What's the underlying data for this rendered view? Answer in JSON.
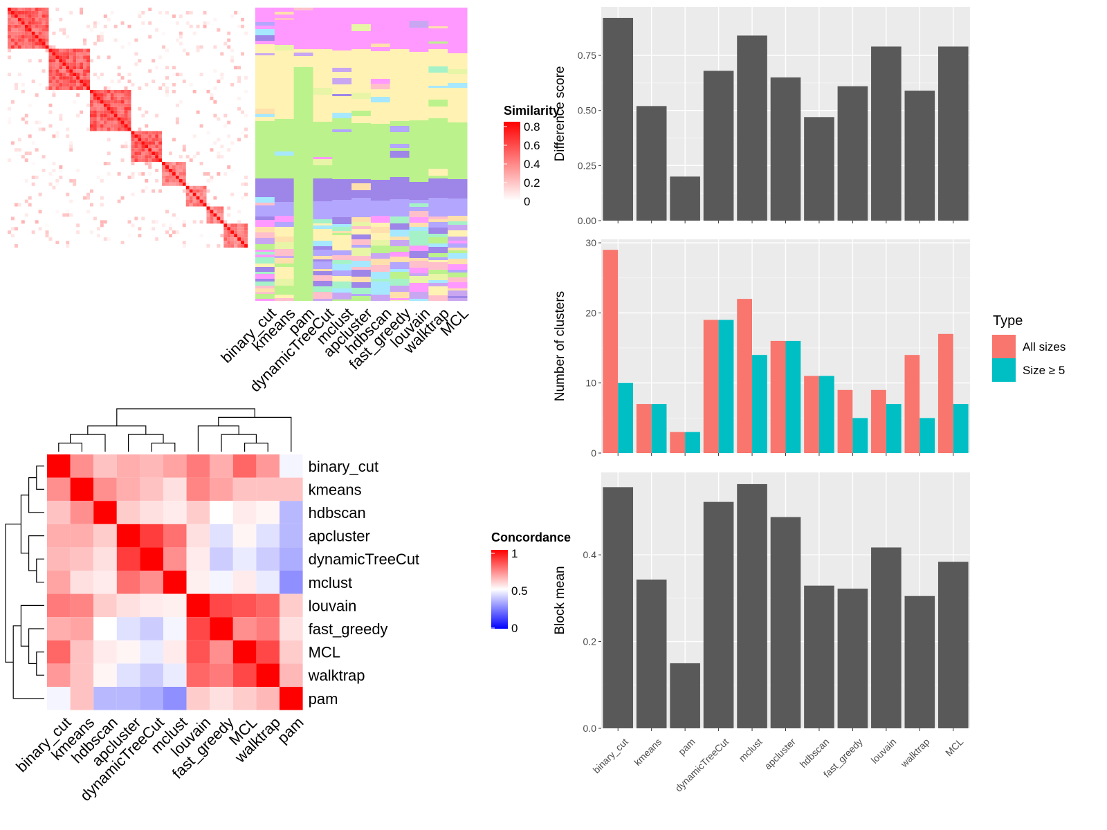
{
  "methods": [
    "binary_cut",
    "kmeans",
    "pam",
    "dynamicTreeCut",
    "mclust",
    "apcluster",
    "hdbscan",
    "fast_greedy",
    "louvain",
    "walktrap",
    "MCL"
  ],
  "heatmap_order": [
    "binary_cut",
    "kmeans",
    "hdbscan",
    "apcluster",
    "dynamicTreeCut",
    "mclust",
    "louvain",
    "fast_greedy",
    "MCL",
    "walktrap",
    "pam"
  ],
  "similarity_legend": {
    "title": "Similarity",
    "ticks": [
      "0.8",
      "0.6",
      "0.4",
      "0.2",
      "0"
    ]
  },
  "concordance_legend": {
    "title": "Concordance",
    "ticks": [
      "1",
      "0.5",
      "0"
    ]
  },
  "type_legend": {
    "title": "Type",
    "items": [
      "All sizes",
      "Size ≥ 5"
    ]
  },
  "colors": {
    "bar": "#595959",
    "all_sizes": "#F8766D",
    "size_ge5": "#00BFC4",
    "panel_bg": "#EBEBEB"
  },
  "chart_data": [
    {
      "type": "heatmap",
      "id": "concordance",
      "rows": [
        "binary_cut",
        "kmeans",
        "hdbscan",
        "apcluster",
        "dynamicTreeCut",
        "mclust",
        "louvain",
        "fast_greedy",
        "MCL",
        "walktrap",
        "pam"
      ],
      "values": [
        [
          1.0,
          0.72,
          0.62,
          0.66,
          0.64,
          0.68,
          0.76,
          0.66,
          0.8,
          0.7,
          0.48
        ],
        [
          0.72,
          1.0,
          0.72,
          0.66,
          0.62,
          0.56,
          0.74,
          0.68,
          0.62,
          0.62,
          0.62
        ],
        [
          0.62,
          0.72,
          1.0,
          0.6,
          0.56,
          0.54,
          0.6,
          0.5,
          0.54,
          0.52,
          0.36
        ],
        [
          0.66,
          0.66,
          0.6,
          1.0,
          0.88,
          0.78,
          0.56,
          0.44,
          0.52,
          0.44,
          0.36
        ],
        [
          0.64,
          0.62,
          0.56,
          0.88,
          1.0,
          0.72,
          0.54,
          0.4,
          0.46,
          0.4,
          0.34
        ],
        [
          0.68,
          0.56,
          0.54,
          0.78,
          0.72,
          1.0,
          0.53,
          0.48,
          0.54,
          0.46,
          0.28
        ],
        [
          0.76,
          0.74,
          0.6,
          0.56,
          0.54,
          0.53,
          1.0,
          0.86,
          0.84,
          0.8,
          0.6
        ],
        [
          0.66,
          0.68,
          0.5,
          0.44,
          0.4,
          0.48,
          0.86,
          1.0,
          0.72,
          0.76,
          0.56
        ],
        [
          0.8,
          0.62,
          0.54,
          0.52,
          0.46,
          0.54,
          0.84,
          0.72,
          1.0,
          0.86,
          0.6
        ],
        [
          0.7,
          0.62,
          0.52,
          0.44,
          0.4,
          0.46,
          0.8,
          0.76,
          0.86,
          1.0,
          0.64
        ],
        [
          0.48,
          0.62,
          0.36,
          0.36,
          0.34,
          0.28,
          0.6,
          0.56,
          0.6,
          0.64,
          1.0
        ]
      ]
    },
    {
      "type": "bar",
      "id": "difference",
      "categories": [
        "binary_cut",
        "kmeans",
        "pam",
        "dynamicTreeCut",
        "mclust",
        "apcluster",
        "hdbscan",
        "fast_greedy",
        "louvain",
        "walktrap",
        "MCL"
      ],
      "values": [
        0.92,
        0.52,
        0.2,
        0.68,
        0.84,
        0.65,
        0.47,
        0.61,
        0.79,
        0.59,
        0.79
      ],
      "ylabel": "Difference score",
      "ylim": [
        0,
        0.97
      ],
      "yticks": [
        "0.00",
        "0.25",
        "0.50",
        "0.75"
      ]
    },
    {
      "type": "bar",
      "id": "clusters",
      "categories": [
        "binary_cut",
        "kmeans",
        "pam",
        "dynamicTreeCut",
        "mclust",
        "apcluster",
        "hdbscan",
        "fast_greedy",
        "louvain",
        "walktrap",
        "MCL"
      ],
      "series": [
        {
          "name": "All sizes",
          "values": [
            29,
            7,
            3,
            19,
            22,
            16,
            11,
            9,
            9,
            14,
            17
          ]
        },
        {
          "name": "Size ≥ 5",
          "values": [
            10,
            7,
            3,
            19,
            14,
            16,
            11,
            5,
            7,
            5,
            7
          ]
        }
      ],
      "ylabel": "Number of clusters",
      "ylim": [
        0,
        30.5
      ],
      "yticks": [
        "0",
        "10",
        "20",
        "30"
      ]
    },
    {
      "type": "bar",
      "id": "blockmean",
      "categories": [
        "binary_cut",
        "kmeans",
        "pam",
        "dynamicTreeCut",
        "mclust",
        "apcluster",
        "hdbscan",
        "fast_greedy",
        "louvain",
        "walktrap",
        "MCL"
      ],
      "values": [
        0.556,
        0.343,
        0.15,
        0.522,
        0.563,
        0.487,
        0.329,
        0.322,
        0.417,
        0.305,
        0.384
      ],
      "ylabel": "Block mean",
      "ylim": [
        0,
        0.59
      ],
      "yticks": [
        "0.0",
        "0.2",
        "0.4"
      ]
    }
  ]
}
